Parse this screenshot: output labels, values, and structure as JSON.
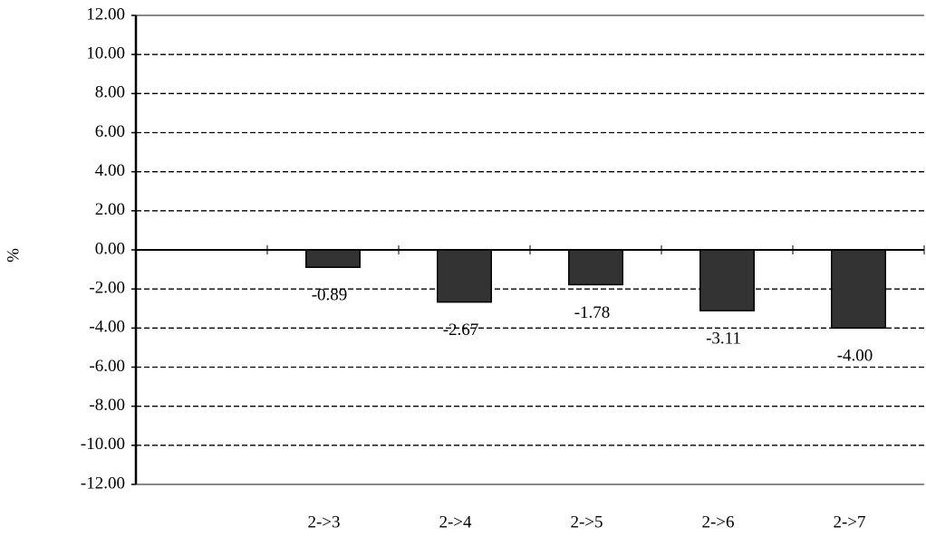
{
  "chart_data": {
    "type": "bar",
    "y_label": "%",
    "categories": [
      null,
      "2->3",
      "2->4",
      "2->5",
      "2->6",
      "2->7"
    ],
    "values": [
      null,
      -0.89,
      -2.67,
      -1.78,
      -3.11,
      -4.0
    ],
    "value_labels": [
      null,
      "-0.89",
      "-2.67",
      "-1.78",
      "-3.11",
      "-4.00"
    ],
    "color": "#333333",
    "ylim": [
      -12,
      12
    ],
    "yticks": [
      {
        "value": -12,
        "label": "-12.00"
      },
      {
        "value": -10,
        "label": "-10.00"
      },
      {
        "value": -8,
        "label": "-8.00"
      },
      {
        "value": -6,
        "label": "-6.00"
      },
      {
        "value": -4,
        "label": "-4.00"
      },
      {
        "value": -2,
        "label": "-2.00"
      },
      {
        "value": 0,
        "label": "0.00"
      },
      {
        "value": 2,
        "label": "2.00"
      },
      {
        "value": 4,
        "label": "4.00"
      },
      {
        "value": 6,
        "label": "6.00"
      },
      {
        "value": 8,
        "label": "8.00"
      },
      {
        "value": 10,
        "label": "10.00"
      },
      {
        "value": 12,
        "label": "12.00"
      }
    ],
    "grid": true
  }
}
